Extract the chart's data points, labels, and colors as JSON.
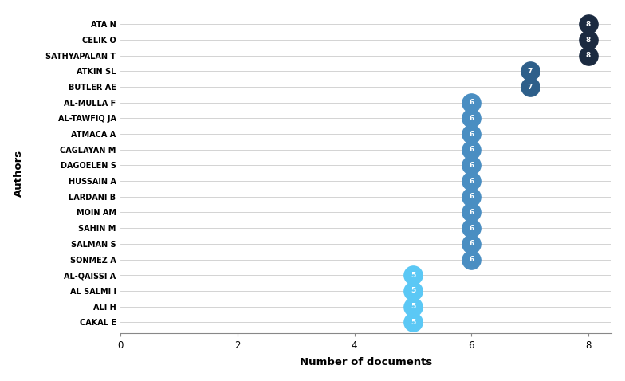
{
  "authors": [
    "ATA N",
    "CELIK O",
    "SATHYAPALAN T",
    "ATKIN SL",
    "BUTLER AE",
    "AL-MULLA F",
    "AL-TAWFIQ JA",
    "ATMACA A",
    "CAGLAYAN M",
    "DAGOELEN S",
    "HUSSAIN A",
    "LARDANI B",
    "MOIN AM",
    "SAHIN M",
    "SALMAN S",
    "SONMEZ A",
    "AL-QAISSI A",
    "AL SALMI I",
    "ALI H",
    "CAKAL E"
  ],
  "values": [
    8,
    8,
    8,
    7,
    7,
    6,
    6,
    6,
    6,
    6,
    6,
    6,
    6,
    6,
    6,
    6,
    5,
    5,
    5,
    5
  ],
  "colors": [
    "#1b2a40",
    "#1b2a40",
    "#1b2a40",
    "#2e5f8a",
    "#2e5f8a",
    "#4a8ec2",
    "#4a8ec2",
    "#4a8ec2",
    "#4a8ec2",
    "#4a8ec2",
    "#4a8ec2",
    "#4a8ec2",
    "#4a8ec2",
    "#4a8ec2",
    "#4a8ec2",
    "#4a8ec2",
    "#5bc8f5",
    "#5bc8f5",
    "#5bc8f5",
    "#5bc8f5"
  ],
  "xlabel": "Number of documents",
  "ylabel": "Authors",
  "xlim": [
    0,
    8.4
  ],
  "xticks": [
    0,
    2,
    4,
    6,
    8
  ],
  "background_color": "#ffffff",
  "bubble_size": 280,
  "figsize": [
    7.84,
    4.78
  ],
  "dpi": 100
}
